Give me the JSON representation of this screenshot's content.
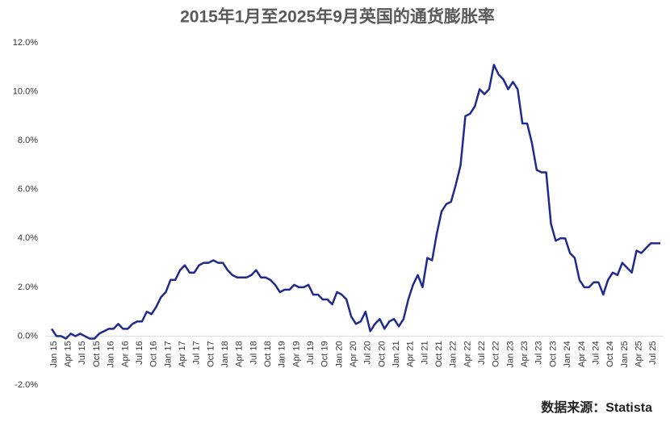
{
  "chart_data": {
    "type": "line",
    "title": "2015年1月至2025年9月英国的通货膨胀率",
    "source": "数据来源：Statista",
    "categories": [
      "Jan 15",
      null,
      null,
      "Apr 15",
      null,
      null,
      "Jul 15",
      null,
      null,
      "Oct 15",
      null,
      null,
      "Jan 16",
      null,
      null,
      "Apr 16",
      null,
      null,
      "Jul 16",
      null,
      null,
      "Oct 16",
      null,
      null,
      "Jan 17",
      null,
      null,
      "Apr 17",
      null,
      null,
      "Jul 17",
      null,
      null,
      "Oct 17",
      null,
      null,
      "Jan 18",
      null,
      null,
      "Apr 18",
      null,
      null,
      "Jul 18",
      null,
      null,
      "Oct 18",
      null,
      null,
      "Jan 19",
      null,
      null,
      "Apr 19",
      null,
      null,
      "Jul 19",
      null,
      null,
      "Oct 19",
      null,
      null,
      "Jan 20",
      null,
      null,
      "Apr 20",
      null,
      null,
      "Jul 20",
      null,
      null,
      "Oct 20",
      null,
      null,
      "Jan 21",
      null,
      null,
      "Apr 21",
      null,
      null,
      "Jul 21",
      null,
      null,
      "Oct 21",
      null,
      null,
      "Jan 22",
      null,
      null,
      "Apr 22",
      null,
      null,
      "Jul 22",
      null,
      null,
      "Oct 22",
      null,
      null,
      "Jan 23",
      null,
      null,
      "Apr 23",
      null,
      null,
      "Jul 23",
      null,
      null,
      "Oct 23",
      null,
      null,
      "Jan 24",
      null,
      null,
      "Apr 24",
      null,
      null,
      "Jul 24",
      null,
      null,
      "Oct 24",
      null,
      null,
      "Jan 25",
      null,
      null,
      "Apr 25",
      null,
      null,
      "Jul 25",
      null,
      null
    ],
    "values": [
      0.3,
      0.0,
      0.0,
      -0.1,
      0.1,
      0.0,
      0.1,
      0.0,
      -0.1,
      -0.1,
      0.1,
      0.2,
      0.3,
      0.3,
      0.5,
      0.3,
      0.3,
      0.5,
      0.6,
      0.6,
      1.0,
      0.9,
      1.2,
      1.6,
      1.8,
      2.3,
      2.3,
      2.7,
      2.9,
      2.6,
      2.6,
      2.9,
      3.0,
      3.0,
      3.1,
      3.0,
      3.0,
      2.7,
      2.5,
      2.4,
      2.4,
      2.4,
      2.5,
      2.7,
      2.4,
      2.4,
      2.3,
      2.1,
      1.8,
      1.9,
      1.9,
      2.1,
      2.0,
      2.0,
      2.1,
      1.7,
      1.7,
      1.5,
      1.5,
      1.3,
      1.8,
      1.7,
      1.5,
      0.8,
      0.5,
      0.6,
      1.0,
      0.2,
      0.5,
      0.7,
      0.3,
      0.6,
      0.7,
      0.4,
      0.7,
      1.5,
      2.1,
      2.5,
      2.0,
      3.2,
      3.1,
      4.2,
      5.1,
      5.4,
      5.5,
      6.2,
      7.0,
      9.0,
      9.1,
      9.4,
      10.1,
      9.9,
      10.1,
      11.1,
      10.7,
      10.5,
      10.1,
      10.4,
      10.1,
      8.7,
      8.7,
      7.9,
      6.8,
      6.7,
      6.7,
      4.6,
      3.9,
      4.0,
      4.0,
      3.4,
      3.2,
      2.3,
      2.0,
      2.0,
      2.2,
      2.2,
      1.7,
      2.3,
      2.6,
      2.5,
      3.0,
      2.8,
      2.6,
      3.5,
      3.4,
      3.6,
      3.8,
      3.8,
      3.8
    ],
    "color": "#1f2a8c",
    "ylim": [
      -2,
      12
    ],
    "yticks": [
      {
        "value": -2,
        "label": "-2.0%"
      },
      {
        "value": 0,
        "label": "0.0%"
      },
      {
        "value": 2,
        "label": "2.0%"
      },
      {
        "value": 4,
        "label": "4.0%"
      },
      {
        "value": 6,
        "label": "6.0%"
      },
      {
        "value": 8,
        "label": "8.0%"
      },
      {
        "value": 10,
        "label": "10.0%"
      },
      {
        "value": 12,
        "label": "12.0%"
      }
    ],
    "grid": false
  }
}
